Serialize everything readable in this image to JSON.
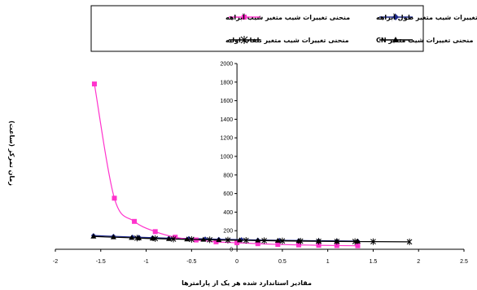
{
  "chart_data": {
    "type": "line",
    "xlabel": "مقادیر استاندارد شده هر یک از پارامترها",
    "ylabel": "زمان تمرکز (ساعت)",
    "xlim": [
      -2,
      2.5
    ],
    "ylim": [
      0,
      2000
    ],
    "x_ticks": [
      "-2",
      "-1.5",
      "-1",
      "-0.5",
      "0",
      "0.5",
      "1",
      "1.5",
      "2",
      "2.5"
    ],
    "y_ticks": [
      "0",
      "200",
      "400",
      "600",
      "800",
      "1000",
      "1200",
      "1400",
      "1600",
      "1800",
      "2000"
    ],
    "grid": false,
    "legend_position": "top",
    "series": [
      {
        "name": "منحنی تغییرات شیب متغیر طول آبراهه",
        "color": "#1f2a8c",
        "marker": "diamond",
        "x": [
          -1.58,
          -1.36,
          -1.15,
          -1.08,
          -0.93,
          -0.75,
          -0.53,
          -0.35,
          -0.2,
          0.05,
          0.23,
          0.47,
          0.68,
          0.9,
          1.1,
          1.33
        ],
        "y": [
          148,
          140,
          132,
          130,
          125,
          120,
          116,
          112,
          108,
          104,
          100,
          97,
          94,
          92,
          90,
          88
        ]
      },
      {
        "name": "منحنی تغییرات شیب متغیر شیب آبراهه",
        "color": "#ff33cc",
        "marker": "square",
        "x": [
          -1.57,
          -1.35,
          -1.13,
          -0.9,
          -0.68,
          -0.45,
          -0.23,
          0,
          0.23,
          0.45,
          0.68,
          0.9,
          1.1,
          1.33
        ],
        "y": [
          1780,
          550,
          300,
          190,
          130,
          100,
          80,
          70,
          60,
          52,
          47,
          43,
          40,
          38
        ]
      },
      {
        "name": "منحنی تغییرات شیب متغیر CN",
        "color": "#000000",
        "marker": "triangle",
        "x": [
          -1.58,
          -1.36,
          -1.16,
          -1.08,
          -0.93,
          -0.75,
          -0.55,
          -0.37,
          -0.2,
          0.03,
          0.23,
          0.45,
          0.68,
          0.9,
          1.1,
          1.33
        ],
        "y": [
          138,
          130,
          124,
          120,
          116,
          112,
          108,
          104,
          100,
          98,
          95,
          93,
          90,
          88,
          86,
          84
        ]
      },
      {
        "name": "منحنی تغییرات شیب متغیر تلفات اولیه",
        "color": "#000000",
        "marker": "star",
        "x": [
          -1.1,
          -0.9,
          -0.7,
          -0.5,
          -0.3,
          -0.1,
          0.1,
          0.3,
          0.5,
          0.7,
          0.9,
          1.1,
          1.3,
          1.5,
          1.9
        ],
        "y": [
          120,
          115,
          110,
          106,
          102,
          99,
          96,
          93,
          90,
          88,
          86,
          84,
          83,
          82,
          80
        ]
      }
    ]
  }
}
